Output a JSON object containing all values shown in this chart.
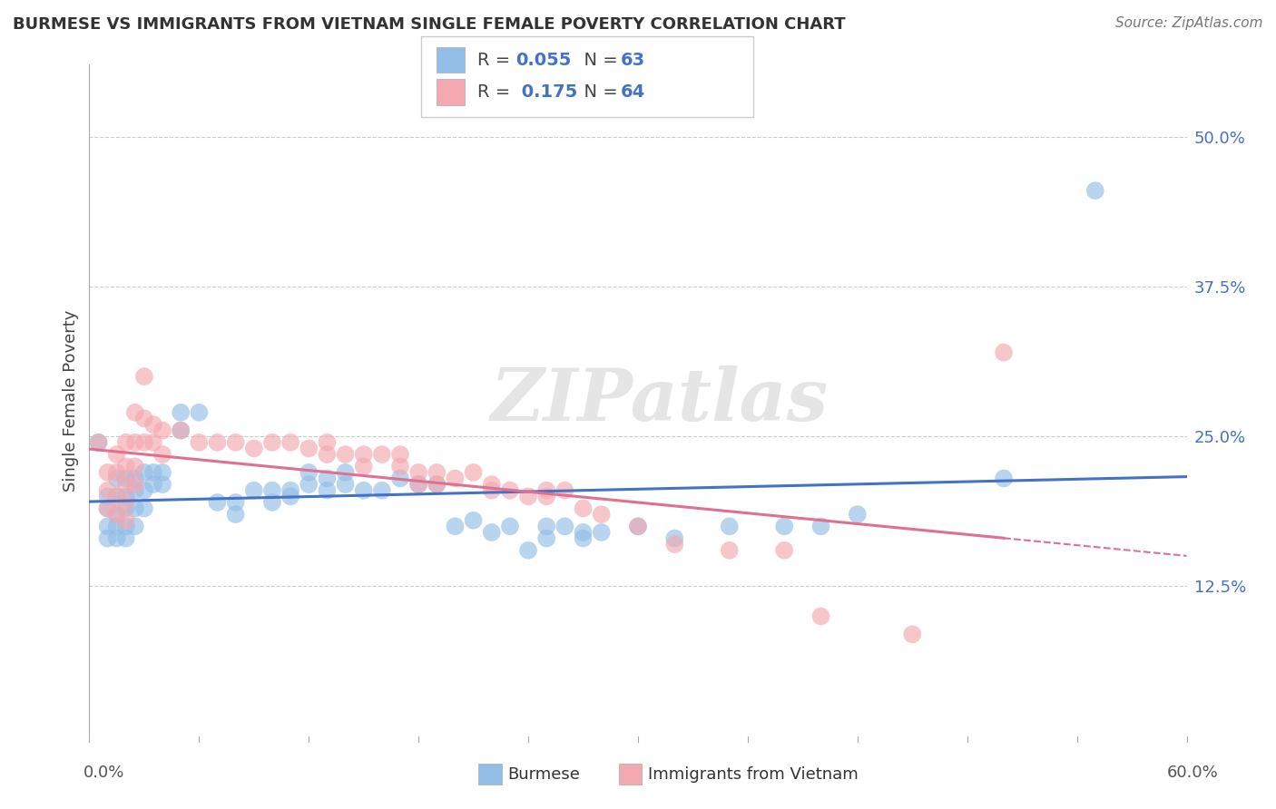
{
  "title": "BURMESE VS IMMIGRANTS FROM VIETNAM SINGLE FEMALE POVERTY CORRELATION CHART",
  "source_text": "Source: ZipAtlas.com",
  "ylabel": "Single Female Poverty",
  "xlim": [
    0.0,
    0.6
  ],
  "ylim": [
    0.0,
    0.56
  ],
  "ytick_values": [
    0.125,
    0.25,
    0.375,
    0.5
  ],
  "burmese_color": "#92bde7",
  "vietnam_color": "#f4a8b0",
  "trendline_blue": "#4472c4",
  "trendline_pink": "#e07090",
  "background_color": "#ffffff",
  "watermark_text": "ZIPatlas",
  "burmese_scatter": [
    [
      0.005,
      0.245
    ],
    [
      0.01,
      0.2
    ],
    [
      0.01,
      0.19
    ],
    [
      0.01,
      0.175
    ],
    [
      0.01,
      0.165
    ],
    [
      0.015,
      0.215
    ],
    [
      0.015,
      0.2
    ],
    [
      0.015,
      0.185
    ],
    [
      0.015,
      0.175
    ],
    [
      0.015,
      0.165
    ],
    [
      0.02,
      0.215
    ],
    [
      0.02,
      0.2
    ],
    [
      0.02,
      0.19
    ],
    [
      0.02,
      0.175
    ],
    [
      0.02,
      0.165
    ],
    [
      0.025,
      0.215
    ],
    [
      0.025,
      0.205
    ],
    [
      0.025,
      0.19
    ],
    [
      0.025,
      0.175
    ],
    [
      0.03,
      0.22
    ],
    [
      0.03,
      0.205
    ],
    [
      0.03,
      0.19
    ],
    [
      0.035,
      0.22
    ],
    [
      0.035,
      0.21
    ],
    [
      0.04,
      0.22
    ],
    [
      0.04,
      0.21
    ],
    [
      0.05,
      0.27
    ],
    [
      0.05,
      0.255
    ],
    [
      0.06,
      0.27
    ],
    [
      0.07,
      0.195
    ],
    [
      0.08,
      0.195
    ],
    [
      0.08,
      0.185
    ],
    [
      0.09,
      0.205
    ],
    [
      0.1,
      0.205
    ],
    [
      0.1,
      0.195
    ],
    [
      0.11,
      0.205
    ],
    [
      0.11,
      0.2
    ],
    [
      0.12,
      0.22
    ],
    [
      0.12,
      0.21
    ],
    [
      0.13,
      0.215
    ],
    [
      0.13,
      0.205
    ],
    [
      0.14,
      0.22
    ],
    [
      0.14,
      0.21
    ],
    [
      0.15,
      0.205
    ],
    [
      0.16,
      0.205
    ],
    [
      0.17,
      0.215
    ],
    [
      0.18,
      0.21
    ],
    [
      0.19,
      0.21
    ],
    [
      0.2,
      0.175
    ],
    [
      0.21,
      0.18
    ],
    [
      0.22,
      0.17
    ],
    [
      0.23,
      0.175
    ],
    [
      0.24,
      0.155
    ],
    [
      0.25,
      0.175
    ],
    [
      0.25,
      0.165
    ],
    [
      0.26,
      0.175
    ],
    [
      0.27,
      0.17
    ],
    [
      0.27,
      0.165
    ],
    [
      0.28,
      0.17
    ],
    [
      0.3,
      0.175
    ],
    [
      0.32,
      0.165
    ],
    [
      0.35,
      0.175
    ],
    [
      0.38,
      0.175
    ],
    [
      0.4,
      0.175
    ],
    [
      0.42,
      0.185
    ],
    [
      0.5,
      0.215
    ],
    [
      0.55,
      0.455
    ]
  ],
  "vietnam_scatter": [
    [
      0.005,
      0.245
    ],
    [
      0.01,
      0.22
    ],
    [
      0.01,
      0.205
    ],
    [
      0.01,
      0.19
    ],
    [
      0.015,
      0.235
    ],
    [
      0.015,
      0.22
    ],
    [
      0.015,
      0.2
    ],
    [
      0.015,
      0.185
    ],
    [
      0.02,
      0.245
    ],
    [
      0.02,
      0.225
    ],
    [
      0.02,
      0.21
    ],
    [
      0.02,
      0.195
    ],
    [
      0.02,
      0.18
    ],
    [
      0.025,
      0.27
    ],
    [
      0.025,
      0.245
    ],
    [
      0.025,
      0.225
    ],
    [
      0.025,
      0.21
    ],
    [
      0.03,
      0.3
    ],
    [
      0.03,
      0.265
    ],
    [
      0.03,
      0.245
    ],
    [
      0.035,
      0.26
    ],
    [
      0.035,
      0.245
    ],
    [
      0.04,
      0.255
    ],
    [
      0.04,
      0.235
    ],
    [
      0.05,
      0.255
    ],
    [
      0.06,
      0.245
    ],
    [
      0.07,
      0.245
    ],
    [
      0.08,
      0.245
    ],
    [
      0.09,
      0.24
    ],
    [
      0.1,
      0.245
    ],
    [
      0.11,
      0.245
    ],
    [
      0.12,
      0.24
    ],
    [
      0.13,
      0.245
    ],
    [
      0.13,
      0.235
    ],
    [
      0.14,
      0.235
    ],
    [
      0.15,
      0.235
    ],
    [
      0.15,
      0.225
    ],
    [
      0.16,
      0.235
    ],
    [
      0.17,
      0.235
    ],
    [
      0.17,
      0.225
    ],
    [
      0.18,
      0.22
    ],
    [
      0.18,
      0.21
    ],
    [
      0.19,
      0.22
    ],
    [
      0.19,
      0.21
    ],
    [
      0.2,
      0.215
    ],
    [
      0.21,
      0.22
    ],
    [
      0.22,
      0.21
    ],
    [
      0.22,
      0.205
    ],
    [
      0.23,
      0.205
    ],
    [
      0.24,
      0.2
    ],
    [
      0.25,
      0.205
    ],
    [
      0.25,
      0.2
    ],
    [
      0.26,
      0.205
    ],
    [
      0.27,
      0.19
    ],
    [
      0.28,
      0.185
    ],
    [
      0.3,
      0.175
    ],
    [
      0.32,
      0.16
    ],
    [
      0.35,
      0.155
    ],
    [
      0.38,
      0.155
    ],
    [
      0.4,
      0.1
    ],
    [
      0.45,
      0.085
    ],
    [
      0.5,
      0.32
    ]
  ]
}
